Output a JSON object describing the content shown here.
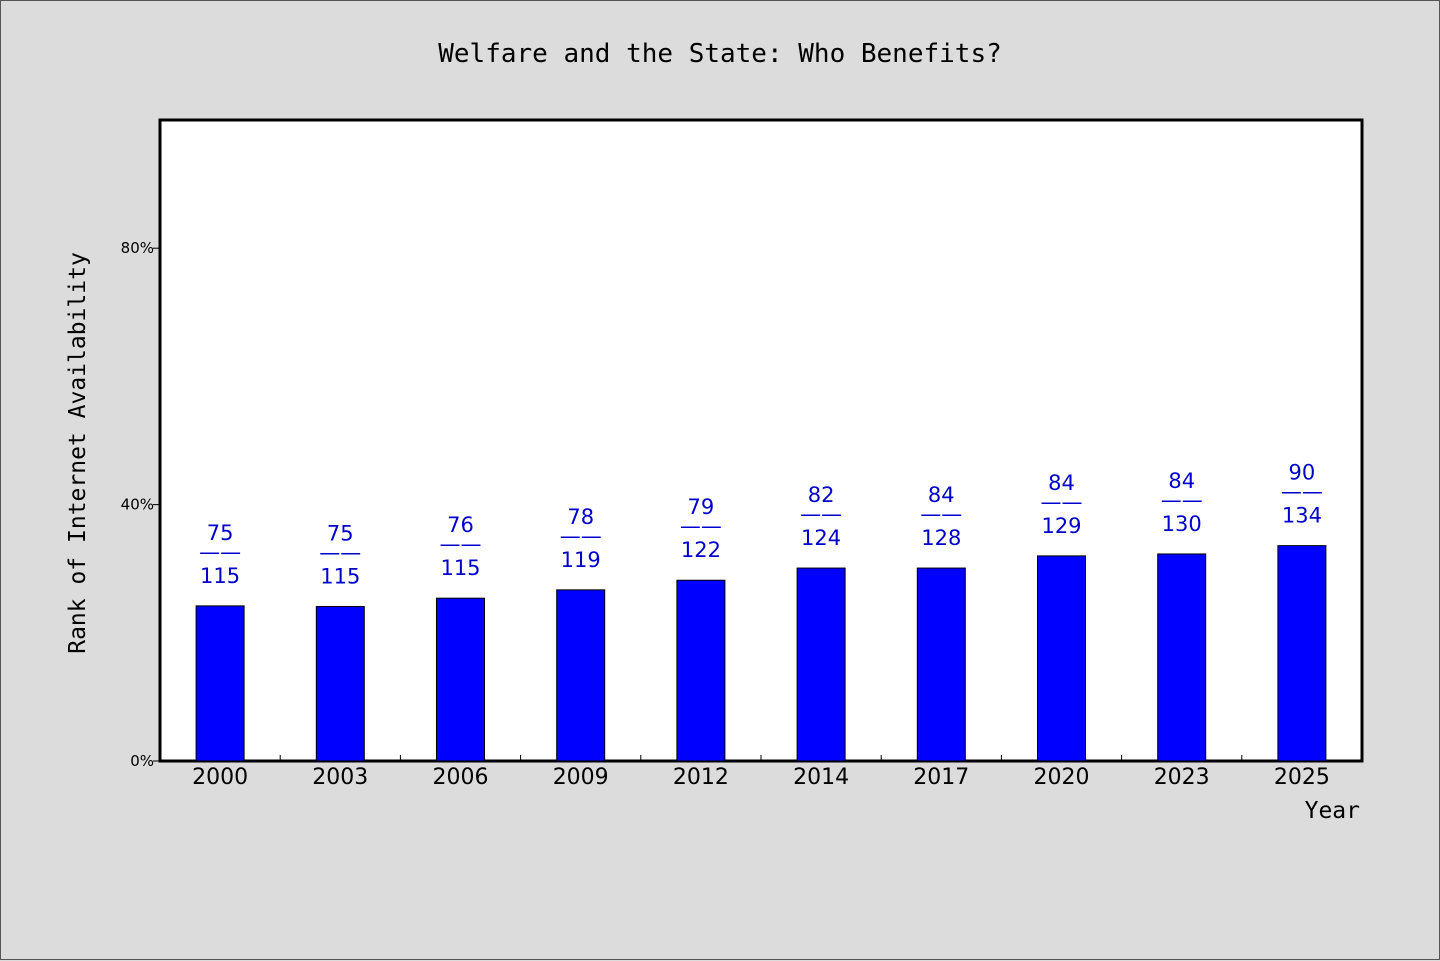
{
  "chart_data": {
    "type": "bar",
    "title": "Welfare and the State: Who Benefits?",
    "xlabel": "Year",
    "ylabel": "Rank of Internet Availability",
    "categories": [
      "2000",
      "2003",
      "2006",
      "2009",
      "2012",
      "2014",
      "2017",
      "2020",
      "2023",
      "2025"
    ],
    "values": [
      24.2,
      24.1,
      25.4,
      26.7,
      28.2,
      30.1,
      30.1,
      32.0,
      32.3,
      33.6
    ],
    "labels_top": [
      "75",
      "75",
      "76",
      "78",
      "79",
      "82",
      "84",
      "84",
      "84",
      "90"
    ],
    "labels_bottom": [
      "115",
      "115",
      "115",
      "119",
      "122",
      "124",
      "128",
      "129",
      "130",
      "134"
    ],
    "label_separator": "——",
    "ylim": [
      0,
      100
    ],
    "yticks": [
      0,
      40,
      80
    ],
    "ytick_labels": [
      "0%",
      "40%",
      "80%"
    ],
    "grid": false,
    "bar_color": "#0000ff",
    "label_color": "#0000cc"
  }
}
